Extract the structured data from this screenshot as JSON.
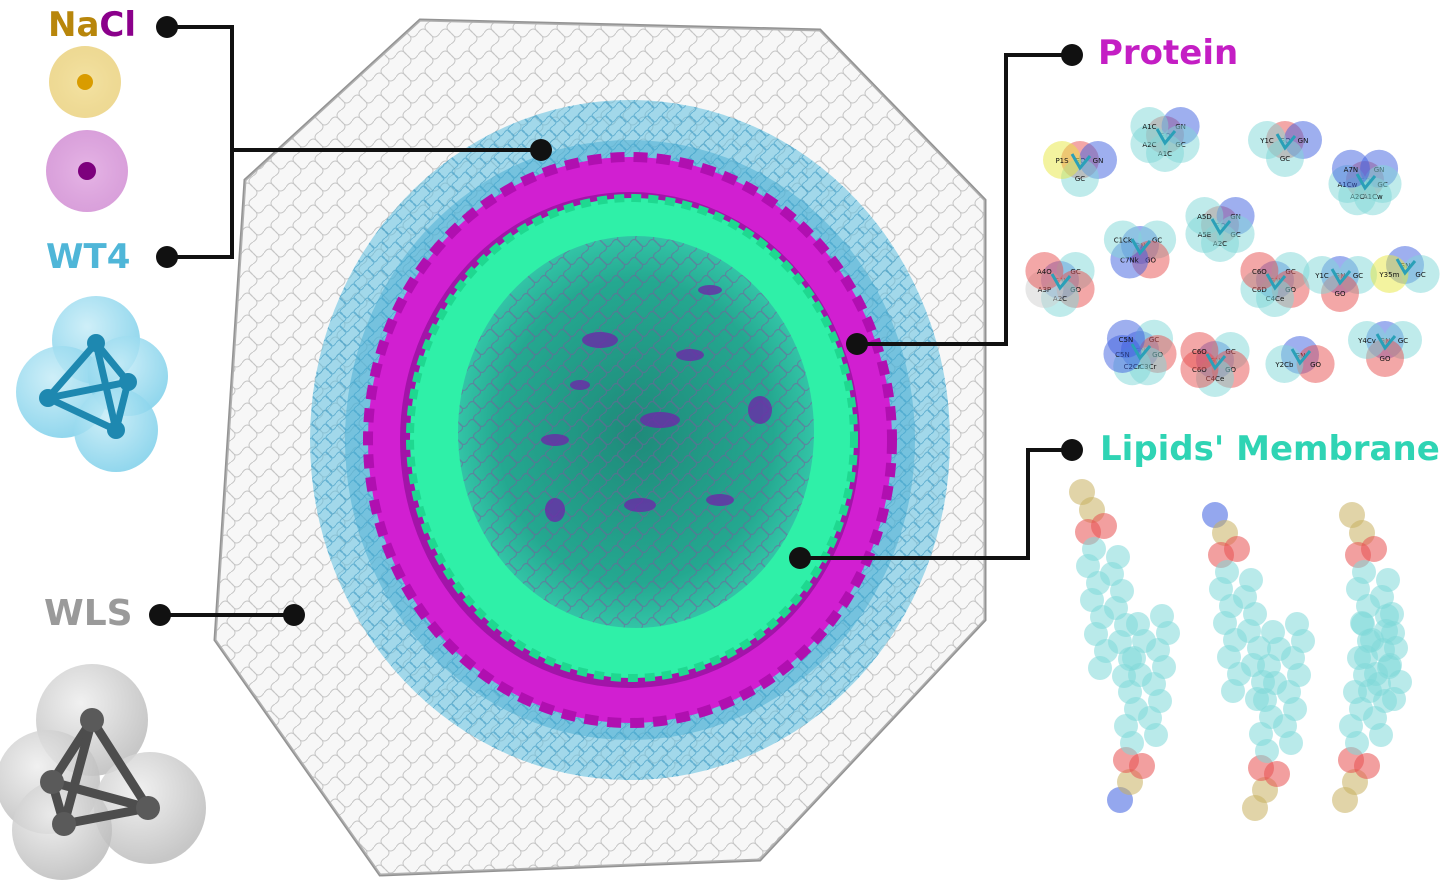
{
  "labels": {
    "na": "Na",
    "cl": "Cl",
    "wt4": "WT4",
    "wls": "WLS",
    "protein": "Protein",
    "lipids": "Lipids' Membrane"
  },
  "protein_beads": [
    "GO",
    "GN",
    "GC",
    "P1S",
    "GO",
    "GN",
    "GC",
    "A1C",
    "A2C",
    "A1C",
    "GO",
    "GN",
    "GC",
    "Y1C",
    "GO",
    "GN",
    "GC",
    "A1Cw",
    "A2C",
    "A1Cw",
    "A7N",
    "GN",
    "GC",
    "GO",
    "C7Nk",
    "C1Ck",
    "GO",
    "GN",
    "GC",
    "A2C",
    "A5E",
    "A5D",
    "GN",
    "GC",
    "GO",
    "A2C",
    "A3P",
    "A4O",
    "GN",
    "GC",
    "GO",
    "C4Ce",
    "C6D",
    "C6O",
    "GN",
    "GC",
    "GO",
    "Y1C",
    "GN",
    "GC",
    "Y35m",
    "GN",
    "GC",
    "GO",
    "C3Cr",
    "C2Cr",
    "C5N",
    "C5N",
    "GN",
    "GC",
    "GO",
    "C4Ce",
    "C6O",
    "C6O",
    "GN",
    "GO",
    "Y2Cb",
    "GN",
    "GC",
    "GO",
    "Y4Cv"
  ],
  "colors": {
    "protein": "#d11fd1",
    "membrane": "#2ff0a8",
    "wt4": "#4fb6d8",
    "wls": "#9a9a9a",
    "na": "#e6b800",
    "cl": "#8b008b"
  },
  "icons": [
    "na-ion-icon",
    "cl-ion-icon",
    "wt4-tetrahedron-icon",
    "wls-tetrahedron-icon",
    "virus-particle-icon"
  ]
}
